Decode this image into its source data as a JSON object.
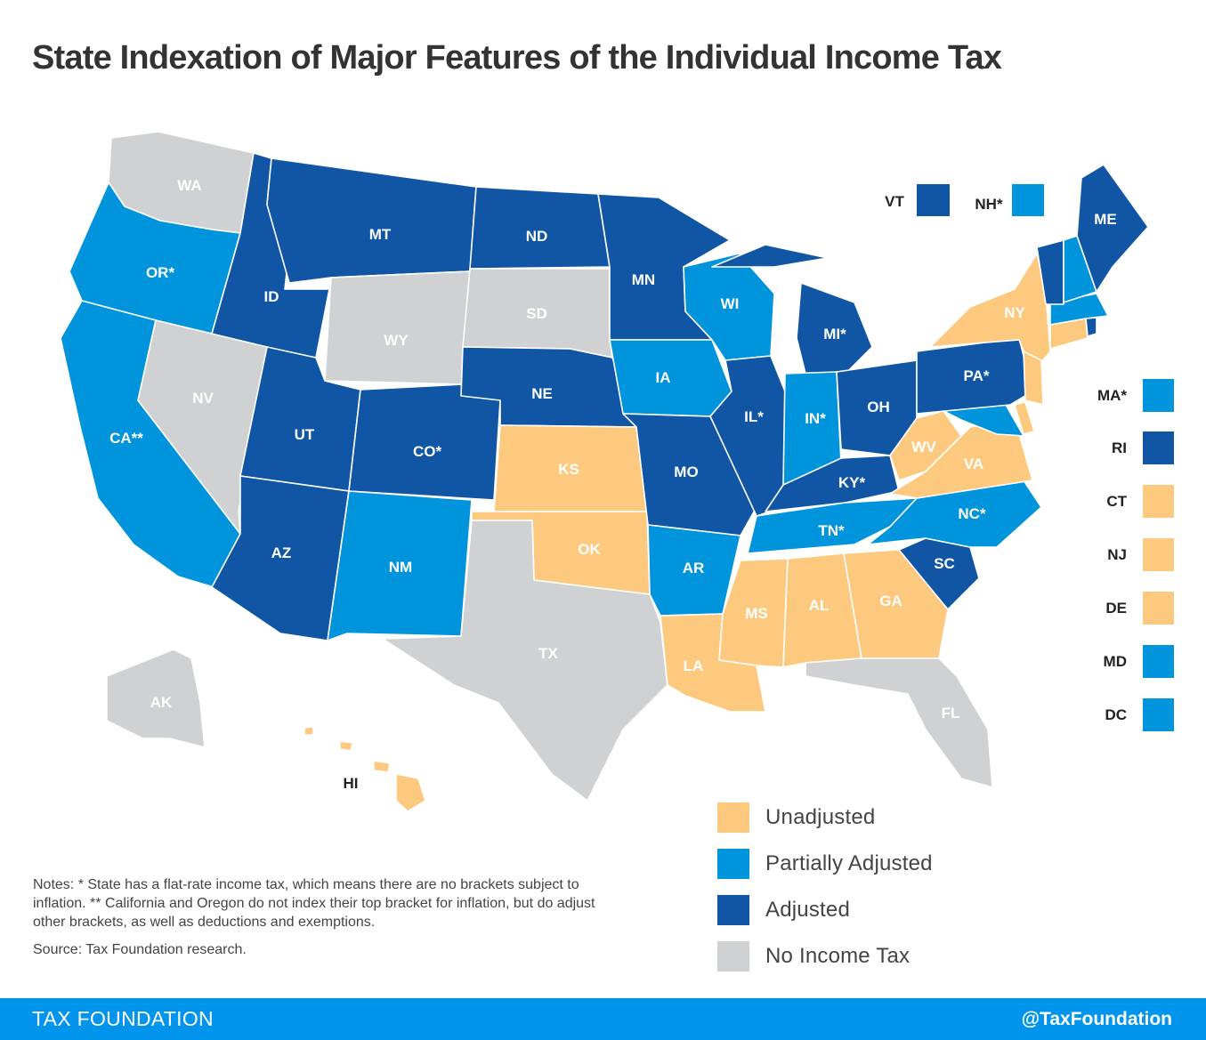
{
  "title": "State Indexation of Major Features of the Individual Income Tax",
  "colors": {
    "unadjusted": "#fdc97f",
    "partial": "#0094dc",
    "adjusted": "#1156a5",
    "none": "#d0d1d3",
    "footer": "#0094ec"
  },
  "states": {
    "WA": {
      "label": "WA",
      "category": "none"
    },
    "OR": {
      "label": "OR*",
      "category": "partial"
    },
    "CA": {
      "label": "CA**",
      "category": "partial"
    },
    "ID": {
      "label": "ID",
      "category": "adjusted"
    },
    "NV": {
      "label": "NV",
      "category": "none"
    },
    "MT": {
      "label": "MT",
      "category": "adjusted"
    },
    "WY": {
      "label": "WY",
      "category": "none"
    },
    "UT": {
      "label": "UT",
      "category": "adjusted"
    },
    "AZ": {
      "label": "AZ",
      "category": "adjusted"
    },
    "CO": {
      "label": "CO*",
      "category": "adjusted"
    },
    "NM": {
      "label": "NM",
      "category": "partial"
    },
    "ND": {
      "label": "ND",
      "category": "adjusted"
    },
    "SD": {
      "label": "SD",
      "category": "none"
    },
    "NE": {
      "label": "NE",
      "category": "adjusted"
    },
    "KS": {
      "label": "KS",
      "category": "unadjusted"
    },
    "OK": {
      "label": "OK",
      "category": "unadjusted"
    },
    "TX": {
      "label": "TX",
      "category": "none"
    },
    "MN": {
      "label": "MN",
      "category": "adjusted"
    },
    "IA": {
      "label": "IA",
      "category": "partial"
    },
    "MO": {
      "label": "MO",
      "category": "adjusted"
    },
    "AR": {
      "label": "AR",
      "category": "partial"
    },
    "LA": {
      "label": "LA",
      "category": "unadjusted"
    },
    "WI": {
      "label": "WI",
      "category": "partial"
    },
    "IL": {
      "label": "IL*",
      "category": "adjusted"
    },
    "MI": {
      "label": "MI*",
      "category": "adjusted"
    },
    "IN": {
      "label": "IN*",
      "category": "partial"
    },
    "OH": {
      "label": "OH",
      "category": "adjusted"
    },
    "KY": {
      "label": "KY*",
      "category": "adjusted"
    },
    "TN": {
      "label": "TN*",
      "category": "partial"
    },
    "MS": {
      "label": "MS",
      "category": "unadjusted"
    },
    "AL": {
      "label": "AL",
      "category": "unadjusted"
    },
    "GA": {
      "label": "GA",
      "category": "unadjusted"
    },
    "FL": {
      "label": "FL",
      "category": "none"
    },
    "SC": {
      "label": "SC",
      "category": "adjusted"
    },
    "NC": {
      "label": "NC*",
      "category": "partial"
    },
    "VA": {
      "label": "VA",
      "category": "unadjusted"
    },
    "WV": {
      "label": "WV",
      "category": "unadjusted"
    },
    "PA": {
      "label": "PA*",
      "category": "adjusted"
    },
    "NY": {
      "label": "NY",
      "category": "unadjusted"
    },
    "ME": {
      "label": "ME",
      "category": "adjusted"
    },
    "AK": {
      "label": "AK",
      "category": "none"
    },
    "HI": {
      "label": "HI",
      "category": "unadjusted"
    },
    "VT": {
      "label": "VT",
      "category": "adjusted"
    },
    "NH": {
      "label": "NH*",
      "category": "partial"
    },
    "MA": {
      "label": "MA*",
      "category": "partial"
    },
    "RI": {
      "label": "RI",
      "category": "adjusted"
    },
    "CT": {
      "label": "CT",
      "category": "unadjusted"
    },
    "NJ": {
      "label": "NJ",
      "category": "unadjusted"
    },
    "DE": {
      "label": "DE",
      "category": "unadjusted"
    },
    "MD": {
      "label": "MD",
      "category": "partial"
    },
    "DC": {
      "label": "DC",
      "category": "partial"
    }
  },
  "side_legend": [
    "MA",
    "RI",
    "CT",
    "NJ",
    "DE",
    "MD",
    "DC"
  ],
  "legend": [
    {
      "key": "unadjusted",
      "label": "Unadjusted"
    },
    {
      "key": "partial",
      "label": "Partially Adjusted"
    },
    {
      "key": "adjusted",
      "label": "Adjusted"
    },
    {
      "key": "none",
      "label": "No Income Tax"
    }
  ],
  "notes": "Notes: * State has a flat-rate income tax, which means there are no brackets subject to inflation. ** California and Oregon do not index their top bracket for inflation, but do adjust other brackets, as well as deductions and exemptions.",
  "source": "Source: Tax Foundation research.",
  "footer": {
    "brand": "TAX FOUNDATION",
    "handle": "@TaxFoundation"
  }
}
